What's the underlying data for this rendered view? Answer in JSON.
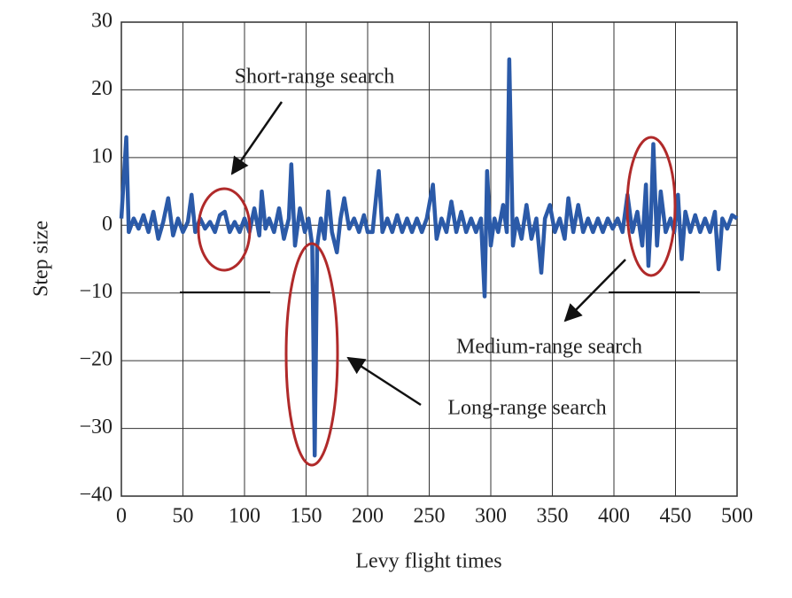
{
  "chart_data": {
    "type": "line",
    "x_label": "Levy flight times",
    "y_label": "Step size",
    "annotations": [
      "Short-range search",
      "Medium-range search",
      "Long-range search"
    ],
    "xlim": [
      0,
      500
    ],
    "ylim": [
      -40,
      30
    ],
    "xticks": [
      0,
      50,
      100,
      150,
      200,
      250,
      300,
      350,
      400,
      450,
      500
    ],
    "yticks": [
      {
        "value": -40,
        "label": "−40"
      },
      {
        "value": -30,
        "label": "−30"
      },
      {
        "value": -20,
        "label": "−20"
      },
      {
        "value": -10,
        "label": "−10"
      },
      0,
      10,
      20,
      30
    ],
    "grid": true,
    "series": [
      {
        "color": "#2b5aa8",
        "x": [
          0,
          4,
          6,
          10,
          14,
          18,
          22,
          26,
          30,
          34,
          38,
          42,
          46,
          50,
          54,
          57,
          60,
          64,
          68,
          72,
          76,
          80,
          84,
          88,
          92,
          96,
          100,
          104,
          108,
          112,
          114,
          117,
          120,
          124,
          128,
          132,
          136,
          138,
          141,
          145,
          149,
          152,
          155,
          157,
          159,
          162,
          165,
          168,
          171,
          175,
          178,
          181,
          185,
          189,
          193,
          197,
          200,
          204,
          209,
          212,
          216,
          220,
          224,
          228,
          232,
          236,
          240,
          244,
          248,
          253,
          256,
          260,
          264,
          268,
          272,
          276,
          280,
          284,
          288,
          292,
          295,
          297,
          300,
          303,
          306,
          310,
          313,
          315,
          318,
          321,
          325,
          329,
          333,
          337,
          341,
          344,
          348,
          352,
          356,
          360,
          363,
          367,
          371,
          375,
          379,
          383,
          387,
          391,
          395,
          399,
          403,
          407,
          411,
          415,
          419,
          423,
          426,
          428,
          430,
          432,
          435,
          438,
          442,
          446,
          449,
          452,
          455,
          458,
          462,
          466,
          470,
          474,
          478,
          482,
          485,
          488,
          492,
          496,
          500
        ],
        "values": [
          1,
          13,
          -1,
          1,
          -0.5,
          1.5,
          -1,
          2,
          -2,
          0.5,
          4,
          -1.5,
          1,
          -1,
          0.5,
          4.5,
          -1,
          1,
          -0.5,
          0.5,
          -1,
          1.5,
          2,
          -1,
          0.5,
          -1,
          1,
          -1,
          2.5,
          -1.5,
          5,
          -0.5,
          1,
          -1,
          2.5,
          -2,
          1,
          9,
          -3,
          2.5,
          -1,
          1,
          -3,
          -34,
          -3,
          1,
          -2,
          5,
          -1,
          -4,
          1,
          4,
          -0.5,
          1,
          -1,
          1.5,
          -1,
          -1,
          8,
          -1,
          1,
          -1,
          1.5,
          -1,
          1,
          -1,
          1,
          -1,
          1,
          6,
          -2,
          1,
          -1,
          3.5,
          -1,
          2,
          -1,
          1,
          -1,
          1,
          -10.5,
          8,
          -3,
          1,
          -1,
          3,
          -1,
          24.5,
          -3,
          1,
          -2,
          3,
          -2,
          1,
          -7,
          1,
          3,
          -1,
          1,
          -2,
          4,
          -1,
          3,
          -1,
          1,
          -1,
          1,
          -1,
          1,
          -0.5,
          1,
          -1,
          4.5,
          -1,
          2,
          -3,
          6,
          -6,
          1,
          12,
          -3,
          5,
          -1,
          1,
          -1,
          4.5,
          -5,
          2,
          -1,
          1.5,
          -1,
          1,
          -1,
          2,
          -6.5,
          1,
          -0.5,
          1.5,
          1
        ]
      }
    ]
  }
}
